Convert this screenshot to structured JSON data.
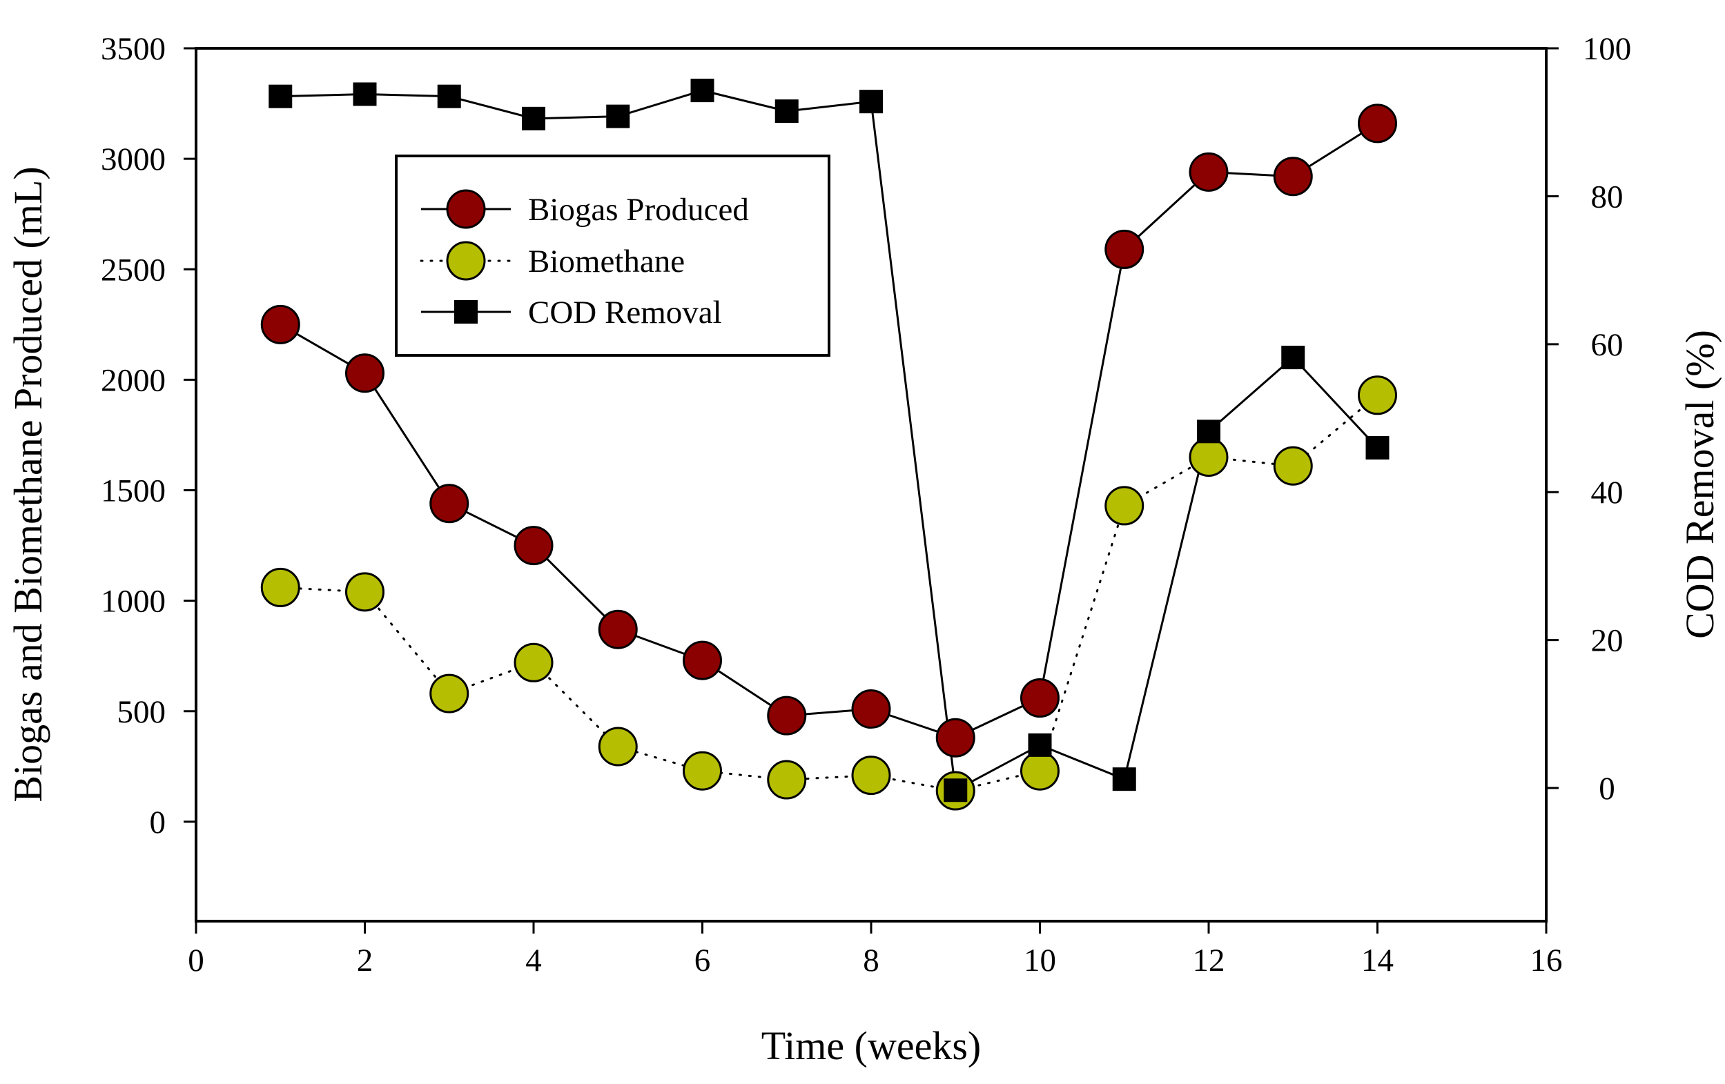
{
  "chart_data": {
    "type": "line",
    "title": "",
    "xlabel": "Time (weeks)",
    "ylabel": "Biogas and Biomethane Produced (mL)",
    "y2label": "COD Removal (%)",
    "xlim": [
      0,
      16
    ],
    "ylim": [
      -450,
      3500
    ],
    "y2lim": [
      -18,
      100
    ],
    "xticks": [
      0,
      2,
      4,
      6,
      8,
      10,
      12,
      14,
      16
    ],
    "yticks": [
      0,
      500,
      1000,
      1500,
      2000,
      2500,
      3000,
      3500
    ],
    "y2ticks": [
      0,
      20,
      40,
      60,
      80,
      100
    ],
    "grid": false,
    "legend_position": "top-left",
    "series": [
      {
        "name": "Biogas Produced",
        "axis": "left",
        "marker": "circle",
        "line": "solid",
        "color": "#8b0000",
        "x": [
          1,
          2,
          3,
          4,
          5,
          6,
          7,
          8,
          9,
          10,
          11,
          12,
          13,
          14
        ],
        "values": [
          2250,
          2030,
          1440,
          1250,
          870,
          730,
          480,
          510,
          380,
          560,
          2590,
          2940,
          2920,
          3160
        ]
      },
      {
        "name": "Biomethane",
        "axis": "left",
        "marker": "circle",
        "line": "dotted",
        "color": "#b5be00",
        "x": [
          1,
          2,
          3,
          4,
          5,
          6,
          7,
          8,
          9,
          10,
          11,
          12,
          13,
          14
        ],
        "values": [
          1060,
          1040,
          580,
          720,
          340,
          230,
          190,
          210,
          140,
          230,
          1430,
          1650,
          1610,
          1930
        ]
      },
      {
        "name": "COD Removal",
        "axis": "right",
        "marker": "square",
        "line": "solid",
        "color": "#000000",
        "x": [
          1,
          2,
          3,
          4,
          5,
          6,
          7,
          8,
          9,
          10,
          11,
          12,
          13,
          14
        ],
        "values": [
          93.5,
          93.8,
          93.5,
          90.5,
          90.8,
          94.3,
          91.5,
          92.8,
          -0.3,
          5.8,
          1.2,
          48.2,
          58.2,
          46
        ]
      }
    ]
  }
}
